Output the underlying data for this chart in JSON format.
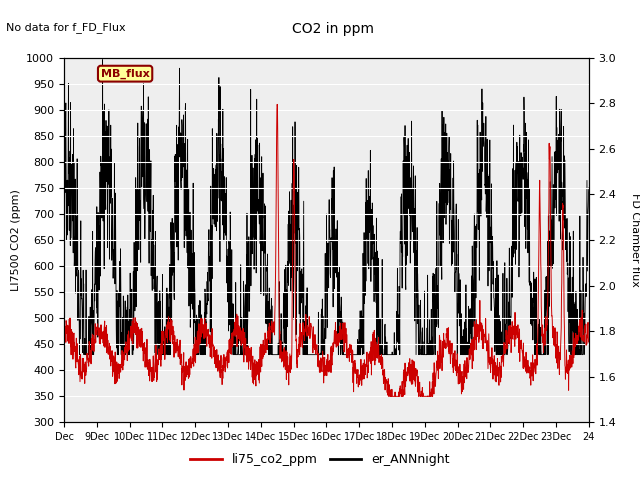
{
  "title": "CO2 in ppm",
  "subtitle": "No data for f_FD_Flux",
  "ylabel_left": "LI7500 CO2 (ppm)",
  "ylabel_right": "FD Chamber flux",
  "ylim_left": [
    300,
    1000
  ],
  "ylim_right": [
    1.4,
    3.0
  ],
  "legend_label_red": "li75_co2_ppm",
  "legend_label_black": "er_ANNnight",
  "inset_label": "MB_flux",
  "background_color": "#eeeeee",
  "line_color_red": "#cc0000",
  "line_color_black": "#000000",
  "yticks_left": [
    300,
    350,
    400,
    450,
    500,
    550,
    600,
    650,
    700,
    750,
    800,
    850,
    900,
    950,
    1000
  ],
  "yticks_right": [
    1.4,
    1.6,
    1.8,
    2.0,
    2.2,
    2.4,
    2.6,
    2.8,
    3.0
  ],
  "xticklabels": [
    "Dec",
    "9Dec",
    "10Dec",
    "11Dec",
    "12Dec",
    "13Dec",
    "14Dec",
    "15Dec",
    "16Dec",
    "17Dec",
    "18Dec",
    "19Dec",
    "20Dec",
    "21Dec",
    "22Dec",
    "23Dec",
    "24"
  ]
}
